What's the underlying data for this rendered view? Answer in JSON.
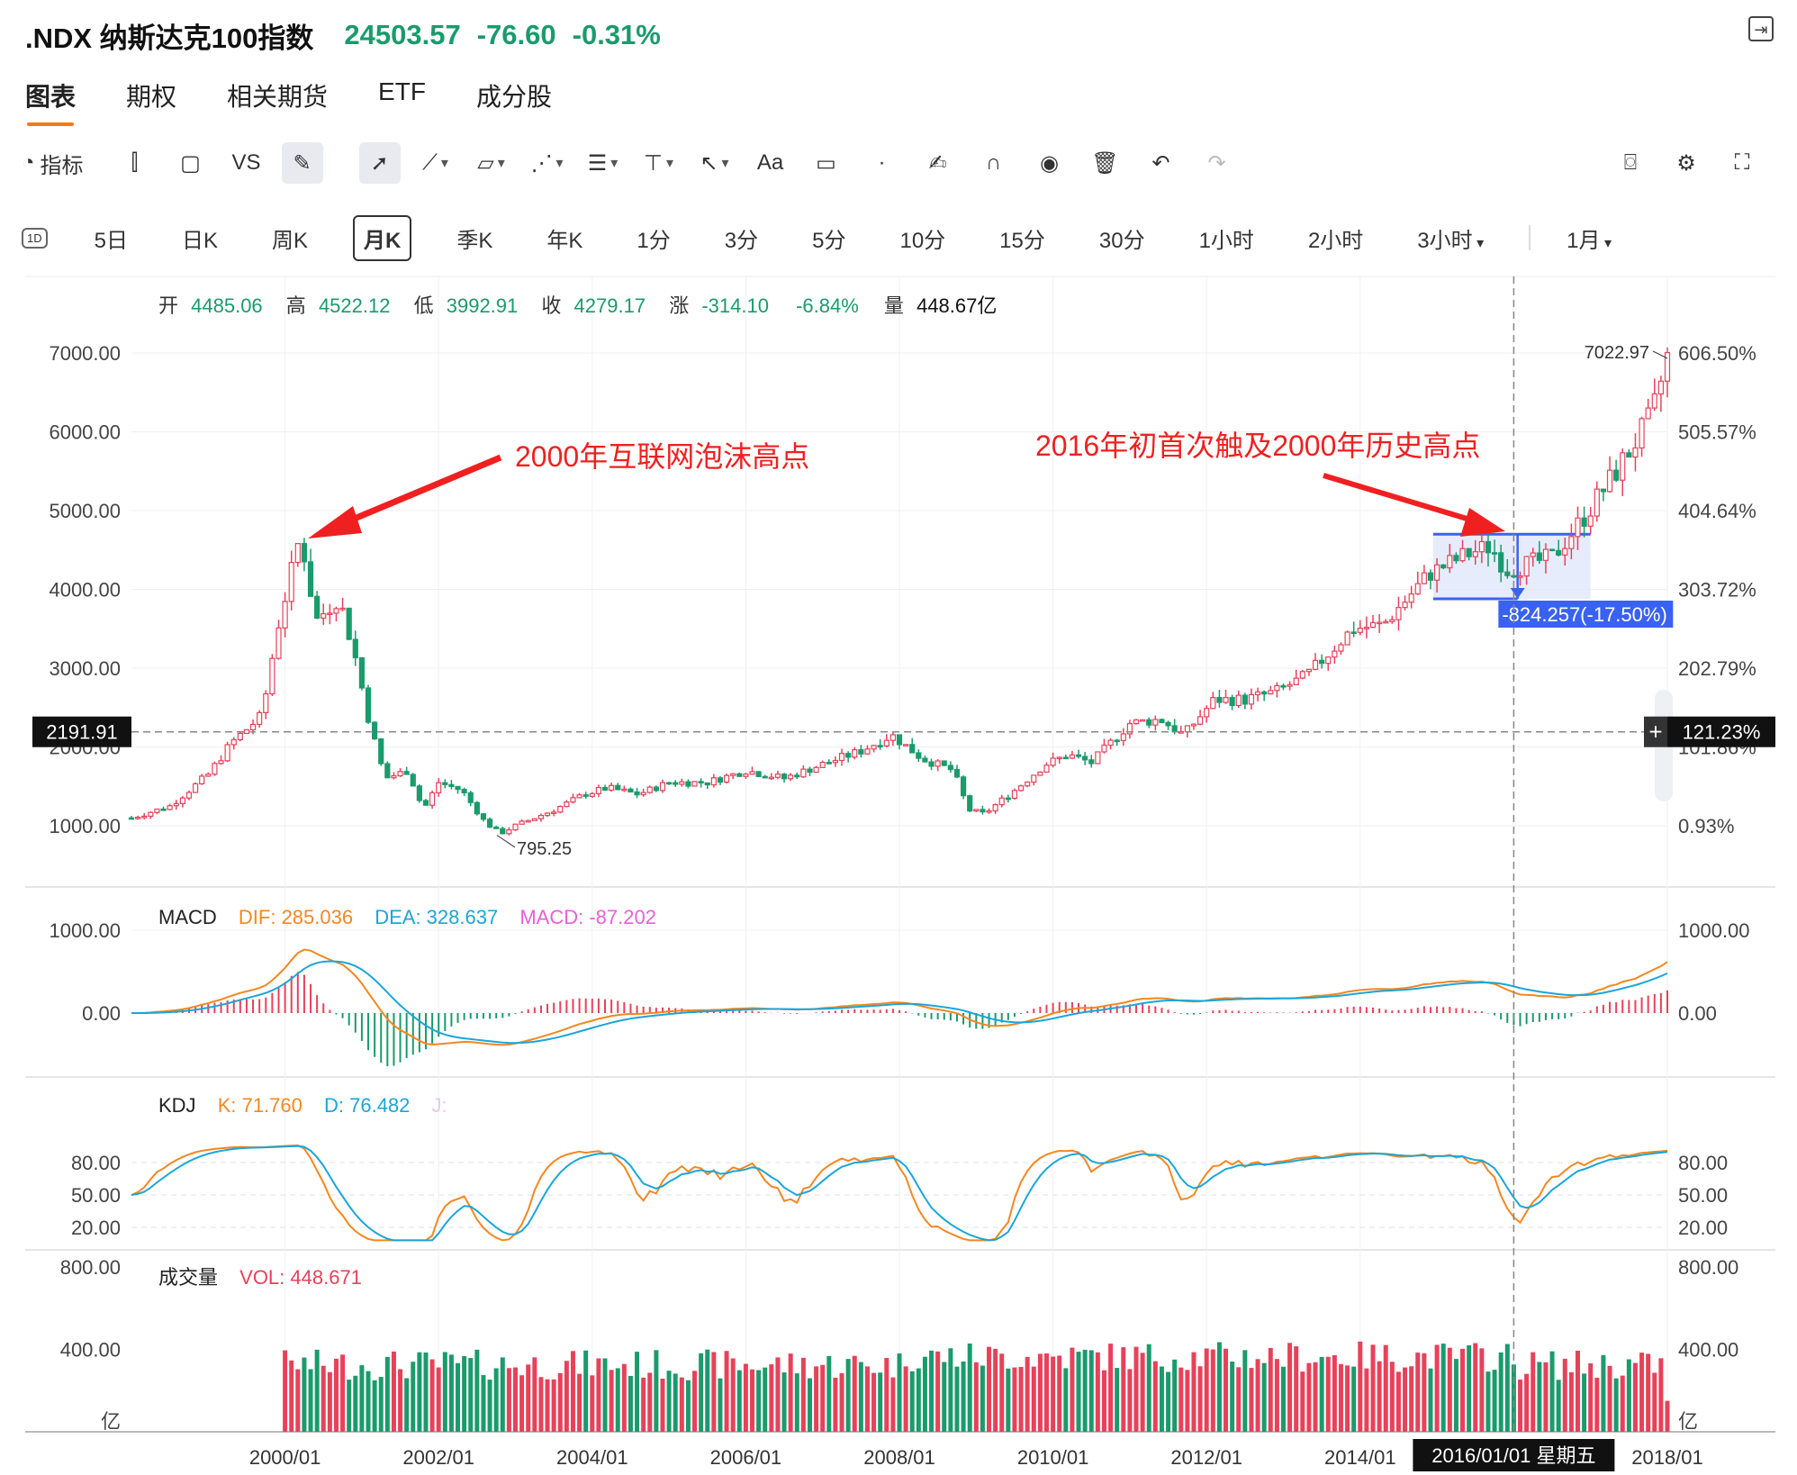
{
  "header": {
    "name": ".NDX 纳斯达克100指数",
    "price": "24503.57",
    "change": "-76.60",
    "pct": "-0.31%"
  },
  "tabs": [
    "图表",
    "期权",
    "相关期货",
    "ETF",
    "成分股"
  ],
  "toolbar": {
    "indicator_label": "指标",
    "vs_label": "VS",
    "text_label": "Aa",
    "icons": [
      "gauge-icon",
      "candlestick-icon",
      "square-icon",
      "pen-icon",
      "cursor-icon",
      "line-icon",
      "rect-shape-icon",
      "pattern-icon",
      "fib-icon",
      "measure-icon",
      "arrow-icon",
      "text-icon",
      "comment-icon",
      "dot-icon",
      "brush-icon",
      "magnet-icon",
      "eye-icon",
      "trash-icon",
      "undo-icon",
      "redo-icon",
      "camera-icon",
      "gear-icon",
      "fullscreen-icon"
    ]
  },
  "periods": [
    "1D",
    "5日",
    "日K",
    "周K",
    "月K",
    "季K",
    "年K",
    "1分",
    "3分",
    "5分",
    "10分",
    "15分",
    "30分",
    "1小时",
    "2小时",
    "3小时",
    "1月"
  ],
  "active_period": "月K",
  "ohlc": {
    "open_label": "开",
    "open": "4485.06",
    "high_label": "高",
    "high": "4522.12",
    "low_label": "低",
    "low": "3992.91",
    "close_label": "收",
    "close": "4279.17",
    "chg_label": "涨",
    "chg": "-314.10",
    "chg_pct": "-6.84%",
    "vol_label": "量",
    "vol": "448.67亿"
  },
  "colors": {
    "up": "#e8415a",
    "down": "#1a9b6c",
    "dif": "#f5871f",
    "dea": "#1aa6d9",
    "macd": "#e860d8",
    "annotation": "#f02020",
    "measure": "#3a62f0"
  },
  "chart_data": {
    "type": "candlestick",
    "title": "",
    "x_ticks": [
      "2000/01",
      "2002/01",
      "2004/01",
      "2006/01",
      "2008/01",
      "2010/01",
      "2012/01",
      "2014/01",
      "2016/01",
      "2018/01"
    ],
    "crosshair_label": "2016/01/01 星期五",
    "price_axis": {
      "ticks": [
        "1000.00",
        "2000.00",
        "3000.00",
        "4000.00",
        "5000.00",
        "6000.00",
        "7000.00"
      ],
      "ylim": [
        1000,
        7000
      ]
    },
    "pct_axis": {
      "ticks": [
        "0.93%",
        "101.86%",
        "202.79%",
        "303.72%",
        "404.64%",
        "505.57%",
        "606.50%"
      ]
    },
    "crosshair_price": "2191.91",
    "crosshair_pct": "121.23%",
    "marks": {
      "high": "7022.97",
      "low": "795.25"
    },
    "annotations": [
      "2000年互联网泡沫高点",
      "2016年初首次触及2000年历史高点"
    ],
    "measure_label": "-824.257(-17.50%)",
    "monthly_close_path": [
      [
        1998.0,
        1100
      ],
      [
        1998.5,
        1250
      ],
      [
        1999.0,
        1650
      ],
      [
        1999.3,
        2050
      ],
      [
        1999.7,
        2400
      ],
      [
        1999.9,
        3500
      ],
      [
        2000.2,
        4700
      ],
      [
        2000.4,
        3600
      ],
      [
        2000.7,
        3900
      ],
      [
        2000.9,
        3200
      ],
      [
        2001.1,
        2300
      ],
      [
        2001.3,
        1600
      ],
      [
        2001.6,
        1700
      ],
      [
        2001.8,
        1200
      ],
      [
        2002.0,
        1550
      ],
      [
        2002.3,
        1450
      ],
      [
        2002.6,
        1050
      ],
      [
        2002.8,
        900
      ],
      [
        2003.0,
        1000
      ],
      [
        2003.5,
        1200
      ],
      [
        2003.9,
        1400
      ],
      [
        2004.2,
        1480
      ],
      [
        2004.6,
        1400
      ],
      [
        2005.0,
        1550
      ],
      [
        2005.5,
        1550
      ],
      [
        2006.0,
        1700
      ],
      [
        2006.5,
        1600
      ],
      [
        2007.0,
        1780
      ],
      [
        2007.5,
        1950
      ],
      [
        2007.9,
        2150
      ],
      [
        2008.3,
        1850
      ],
      [
        2008.7,
        1700
      ],
      [
        2008.9,
        1200
      ],
      [
        2009.1,
        1150
      ],
      [
        2009.5,
        1450
      ],
      [
        2009.9,
        1780
      ],
      [
        2010.2,
        1900
      ],
      [
        2010.5,
        1800
      ],
      [
        2011.0,
        2300
      ],
      [
        2011.4,
        2350
      ],
      [
        2011.7,
        2150
      ],
      [
        2012.1,
        2600
      ],
      [
        2012.5,
        2600
      ],
      [
        2012.9,
        2700
      ],
      [
        2013.3,
        2900
      ],
      [
        2013.9,
        3500
      ],
      [
        2014.3,
        3550
      ],
      [
        2014.9,
        4200
      ],
      [
        2015.4,
        4450
      ],
      [
        2015.7,
        4550
      ],
      [
        2015.9,
        4250
      ],
      [
        2016.1,
        4300
      ],
      [
        2016.5,
        4400
      ],
      [
        2016.9,
        4900
      ],
      [
        2017.3,
        5450
      ],
      [
        2017.8,
        6200
      ],
      [
        2018.0,
        6950
      ]
    ],
    "indicators": {
      "macd": {
        "label": "MACD",
        "dif_label": "DIF: 285.036",
        "dea_label": "DEA: 328.637",
        "macd_label": "MACD: -87.202",
        "ticks": [
          "0.00",
          "1000.00"
        ],
        "ylim": [
          -700,
          1150
        ]
      },
      "kdj": {
        "label": "KDJ",
        "k_label": "K: 71.760",
        "d_label": "D: 76.482",
        "j_label": "J:",
        "ticks": [
          "20.00",
          "50.00",
          "80.00"
        ],
        "ylim": [
          0,
          110
        ]
      },
      "vol": {
        "label": "成交量",
        "vol_label": "VOL: 448.671",
        "ticks": [
          "400.00",
          "800.00"
        ],
        "unit": "亿",
        "ylim": [
          0,
          800
        ]
      }
    }
  }
}
